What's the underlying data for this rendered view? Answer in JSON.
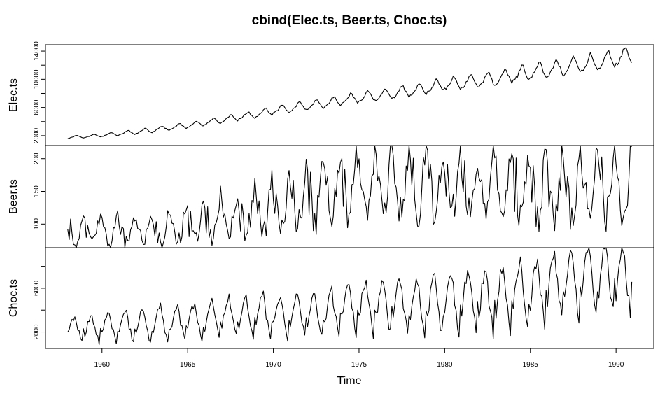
{
  "chart_data": {
    "type": "line",
    "title": "cbind(Elec.ts, Beer.ts, Choc.ts)",
    "xlabel": "Time",
    "frequency": 12,
    "start": [
      1958,
      1
    ],
    "end": [
      1990,
      12
    ],
    "xlim": [
      1956.7,
      1992.2
    ],
    "x_ticks": [
      1960,
      1965,
      1970,
      1975,
      1980,
      1985,
      1990
    ],
    "grid": false,
    "legend": "none",
    "panels": [
      {
        "name": "Elec.ts",
        "ylabel": "Elec.ts",
        "ylim": [
          600,
          14900
        ],
        "y_ticks": [
          2000,
          6000,
          10000,
          14000
        ],
        "y_tick_labels": [
          "2000",
          "6000",
          "10000",
          "14000"
        ],
        "y_minor_ticks": [
          4000,
          8000,
          12000
        ],
        "annual_mean": [
          1800,
          1950,
          2150,
          2400,
          2650,
          2950,
          3250,
          3600,
          4000,
          4400,
          4800,
          5250,
          5700,
          6050,
          6350,
          6750,
          7150,
          7500,
          7800,
          8100,
          8500,
          8950,
          9350,
          9650,
          9850,
          10250,
          10650,
          11100,
          11450,
          11850,
          12250,
          12700,
          13100
        ],
        "annual_range": [
          280,
          320,
          360,
          400,
          440,
          480,
          520,
          560,
          620,
          660,
          700,
          750,
          800,
          850,
          900,
          950,
          1000,
          1050,
          1100,
          1150,
          1200,
          1250,
          1300,
          1350,
          1400,
          1450,
          1500,
          1550,
          1600,
          1650,
          1700,
          1750,
          1800
        ],
        "seasonal_pattern": [
          -0.6,
          -0.55,
          -0.3,
          -0.1,
          0.2,
          0.55,
          0.8,
          0.75,
          0.35,
          0.05,
          -0.3,
          -0.5
        ],
        "noise_amplitude": 0.15
      },
      {
        "name": "Beer.ts",
        "ylabel": "Beer.ts",
        "ylim": [
          64,
          220
        ],
        "y_ticks": [
          100,
          150,
          200
        ],
        "y_tick_labels": [
          "100",
          "150",
          "200"
        ],
        "y_minor_ticks": [],
        "annual_mean": [
          88,
          89,
          89,
          91,
          93,
          95,
          98,
          102,
          106,
          110,
          114,
          120,
          128,
          136,
          144,
          152,
          158,
          160,
          162,
          160,
          162,
          162,
          160,
          158,
          156,
          155,
          156,
          157,
          158,
          160,
          160,
          161,
          162
        ],
        "annual_range": [
          40,
          40,
          42,
          45,
          45,
          50,
          52,
          55,
          58,
          62,
          65,
          70,
          75,
          80,
          85,
          88,
          90,
          88,
          90,
          92,
          92,
          92,
          92,
          90,
          90,
          92,
          92,
          92,
          92,
          92,
          92,
          92,
          92
        ],
        "seasonal_pattern": [
          0.3,
          -0.1,
          0.2,
          -0.2,
          -0.45,
          -0.5,
          -0.45,
          -0.25,
          -0.1,
          0.2,
          0.45,
          0.6
        ],
        "noise_amplitude": 0.3
      },
      {
        "name": "Choc.ts",
        "ylabel": "Choc.ts",
        "ylim": [
          500,
          9700
        ],
        "y_ticks": [
          2000,
          6000
        ],
        "y_tick_labels": [
          "2000",
          "6000"
        ],
        "y_minor_ticks": [
          4000,
          8000
        ],
        "annual_mean": [
          2400,
          2400,
          2600,
          2700,
          2800,
          3000,
          3100,
          3200,
          3400,
          3600,
          3700,
          3700,
          3700,
          3800,
          3900,
          4000,
          4500,
          4500,
          4600,
          4700,
          4600,
          4700,
          5000,
          5200,
          5100,
          5500,
          5900,
          6200,
          6600,
          6900,
          7100,
          7300,
          7300
        ],
        "annual_range": [
          2000,
          2200,
          2600,
          2800,
          2800,
          3000,
          3000,
          3200,
          3200,
          3400,
          3400,
          3600,
          3600,
          3600,
          3800,
          4000,
          4200,
          4400,
          4400,
          4600,
          4800,
          5000,
          5200,
          5200,
          5200,
          5400,
          5600,
          5600,
          5600,
          5800,
          6000,
          6000,
          6000
        ],
        "seasonal_pattern": [
          -0.3,
          -0.1,
          0.15,
          0.3,
          0.4,
          0.45,
          0.2,
          -0.05,
          -0.25,
          -0.45,
          -0.6,
          -0.15
        ],
        "noise_amplitude": 0.12
      }
    ]
  }
}
